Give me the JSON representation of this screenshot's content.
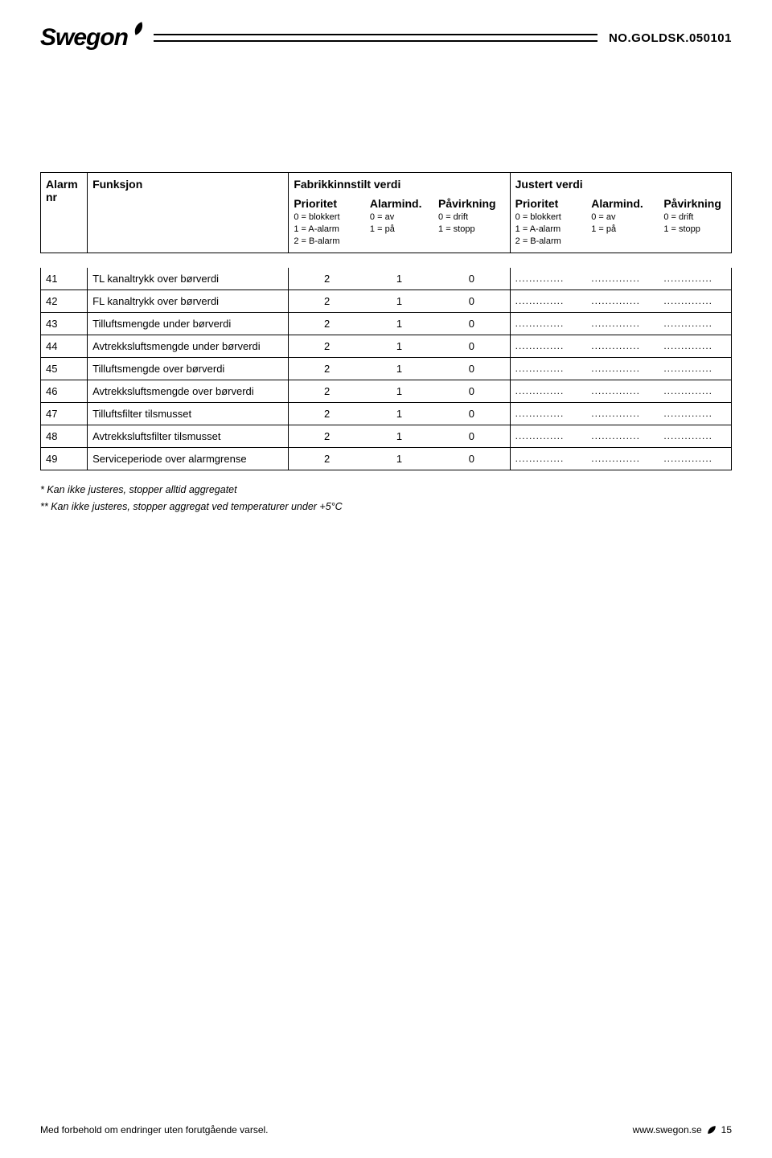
{
  "header": {
    "logo_text": "Swegon",
    "doc_code": "NO.GOLDSK.050101"
  },
  "table": {
    "head": {
      "col_alarm_nr_1": "Alarm",
      "col_alarm_nr_2": "nr",
      "col_funksjon": "Funksjon",
      "group_fabrikk": "Fabrikkinnstilt verdi",
      "group_justert": "Justert verdi",
      "col_prioritet": "Prioritet",
      "col_alarmind": "Alarmind.",
      "col_pavirkning": "Påvirkning",
      "legend_prioritet_1": "0 = blokkert",
      "legend_prioritet_2": "1 = A-alarm",
      "legend_prioritet_3": "2 = B-alarm",
      "legend_alarmind_1": "0 = av",
      "legend_alarmind_2": "1 = på",
      "legend_pavirk_1": "0 = drift",
      "legend_pavirk_2": "1 = stopp"
    },
    "rows": [
      {
        "nr": "41",
        "func": "TL kanaltrykk over børverdi",
        "p": "2",
        "a": "1",
        "i": "0"
      },
      {
        "nr": "42",
        "func": "FL kanaltrykk over børverdi",
        "p": "2",
        "a": "1",
        "i": "0"
      },
      {
        "nr": "43",
        "func": "Tilluftsmengde under børverdi",
        "p": "2",
        "a": "1",
        "i": "0"
      },
      {
        "nr": "44",
        "func": "Avtrekksluftsmengde under børverdi",
        "p": "2",
        "a": "1",
        "i": "0"
      },
      {
        "nr": "45",
        "func": "Tilluftsmengde over børverdi",
        "p": "2",
        "a": "1",
        "i": "0"
      },
      {
        "nr": "46",
        "func": "Avtrekksluftsmengde over børverdi",
        "p": "2",
        "a": "1",
        "i": "0"
      },
      {
        "nr": "47",
        "func": "Tilluftsfilter tilsmusset",
        "p": "2",
        "a": "1",
        "i": "0"
      },
      {
        "nr": "48",
        "func": "Avtrekksluftsfilter tilsmusset",
        "p": "2",
        "a": "1",
        "i": "0"
      },
      {
        "nr": "49",
        "func": "Serviceperiode over alarmgrense",
        "p": "2",
        "a": "1",
        "i": "0"
      }
    ],
    "dots": ".............."
  },
  "footnotes": {
    "note1": "* Kan ikke justeres, stopper alltid aggregatet",
    "note2": "** Kan ikke justeres, stopper aggregat ved temperaturer under +5°C"
  },
  "footer": {
    "left": "Med forbehold om endringer uten forutgående varsel.",
    "url": "www.swegon.se",
    "page": "15"
  }
}
